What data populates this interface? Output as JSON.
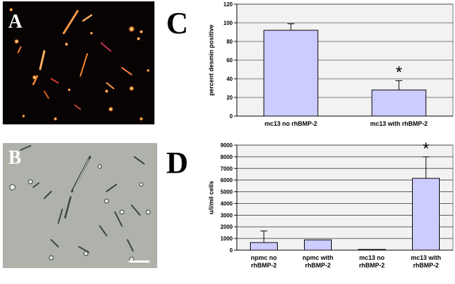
{
  "panels": {
    "a_label": "A",
    "b_label": "B",
    "c_label": "C",
    "d_label": "D"
  },
  "chart_data": [
    {
      "id": "C",
      "type": "bar",
      "ylabel": "percent desmin positive",
      "xlabel": "",
      "ylim": [
        0,
        120
      ],
      "yticks": [
        0,
        20,
        40,
        60,
        80,
        100,
        120
      ],
      "categories": [
        [
          "mc13 no rhBMP-2"
        ],
        [
          "mc13 with rhBMP-2"
        ]
      ],
      "values": [
        92,
        28
      ],
      "errors": [
        7,
        10
      ],
      "annotations": [
        "",
        "*"
      ],
      "grid": true,
      "bar_color": "#ccccff",
      "plot_bg": "#f2f2f2"
    },
    {
      "id": "D",
      "type": "bar",
      "ylabel": "u/l/mil cells",
      "xlabel": "",
      "ylim": [
        0,
        9000
      ],
      "yticks": [
        0,
        1000,
        2000,
        3000,
        4000,
        5000,
        6000,
        7000,
        8000,
        9000
      ],
      "categories": [
        [
          "npmc no",
          "rhBMP-2"
        ],
        [
          "npmc with",
          "rhBMP-2"
        ],
        [
          "mc13 no",
          "rhBMP-2"
        ],
        [
          "mc13 with",
          "rhBMP-2"
        ]
      ],
      "values": [
        650,
        880,
        60,
        6150
      ],
      "errors": [
        1000,
        0,
        0,
        1850
      ],
      "annotations": [
        "",
        "",
        "",
        "*"
      ],
      "grid": true,
      "bar_color": "#ccccff",
      "plot_bg": "#f2f2f2"
    }
  ]
}
